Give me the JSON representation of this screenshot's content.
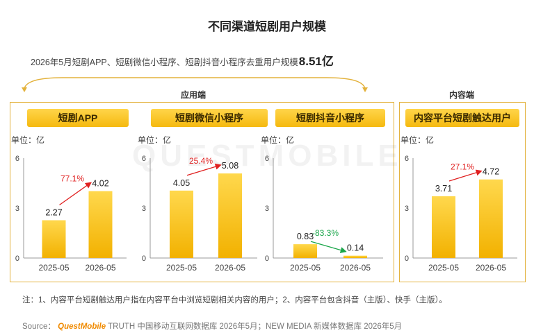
{
  "title": "不同渠道短剧用户规模",
  "summary": {
    "text": "2026年5月短剧APP、短剧微信小程序、短剧抖音小程序去重用户规模",
    "value": "8.51亿"
  },
  "groups": {
    "app_side": "应用端",
    "content_side": "内容端"
  },
  "watermark": "QUESTMOBILE",
  "chart_data": [
    {
      "type": "bar",
      "title": "短剧APP",
      "ylabel": "单位：亿",
      "categories": [
        "2025-05",
        "2026-05"
      ],
      "values": [
        2.27,
        4.02
      ],
      "value_labels": [
        "2.27",
        "4.02"
      ],
      "growth": "77.1%",
      "growth_color": "#e02020",
      "ylim": [
        0,
        6
      ],
      "yticks": [
        "0",
        "3",
        "6"
      ]
    },
    {
      "type": "bar",
      "title": "短剧微信小程序",
      "ylabel": "单位：亿",
      "categories": [
        "2025-05",
        "2026-05"
      ],
      "values": [
        4.05,
        5.08
      ],
      "value_labels": [
        "4.05",
        "5.08"
      ],
      "growth": "25.4%",
      "growth_color": "#e02020",
      "ylim": [
        0,
        6
      ],
      "yticks": [
        "0",
        "3",
        "6"
      ]
    },
    {
      "type": "bar",
      "title": "短剧抖音小程序",
      "ylabel": "单位：亿",
      "categories": [
        "2025-05",
        "2026-05"
      ],
      "values": [
        0.83,
        0.14
      ],
      "value_labels": [
        "0.83",
        "0.14"
      ],
      "growth": "-83.3%",
      "growth_color": "#1aa64a",
      "ylim": [
        0,
        6
      ],
      "yticks": [
        "0",
        "3",
        "6"
      ]
    },
    {
      "type": "bar",
      "title": "内容平台短剧触达用户",
      "ylabel": "单位：亿",
      "categories": [
        "2025-05",
        "2026-05"
      ],
      "values": [
        3.71,
        4.72
      ],
      "value_labels": [
        "3.71",
        "4.72"
      ],
      "growth": "27.1%",
      "growth_color": "#e02020",
      "ylim": [
        0,
        6
      ],
      "yticks": [
        "0",
        "3",
        "6"
      ]
    }
  ],
  "note": "注：1、内容平台短剧触达用户指在内容平台中浏览短剧相关内容的用户；2、内容平台包含抖音（主版）、快手（主版）。",
  "source": {
    "label": "Source：",
    "brand": "QuestMobile",
    "text": "TRUTH 中国移动互联网数据库 2026年5月；NEW MEDIA 新媒体数据库 2026年5月"
  },
  "colors": {
    "bar_top": "#ffd84d",
    "bar_bottom": "#f2b100",
    "frame": "#e3b23c",
    "axis": "#999999"
  }
}
